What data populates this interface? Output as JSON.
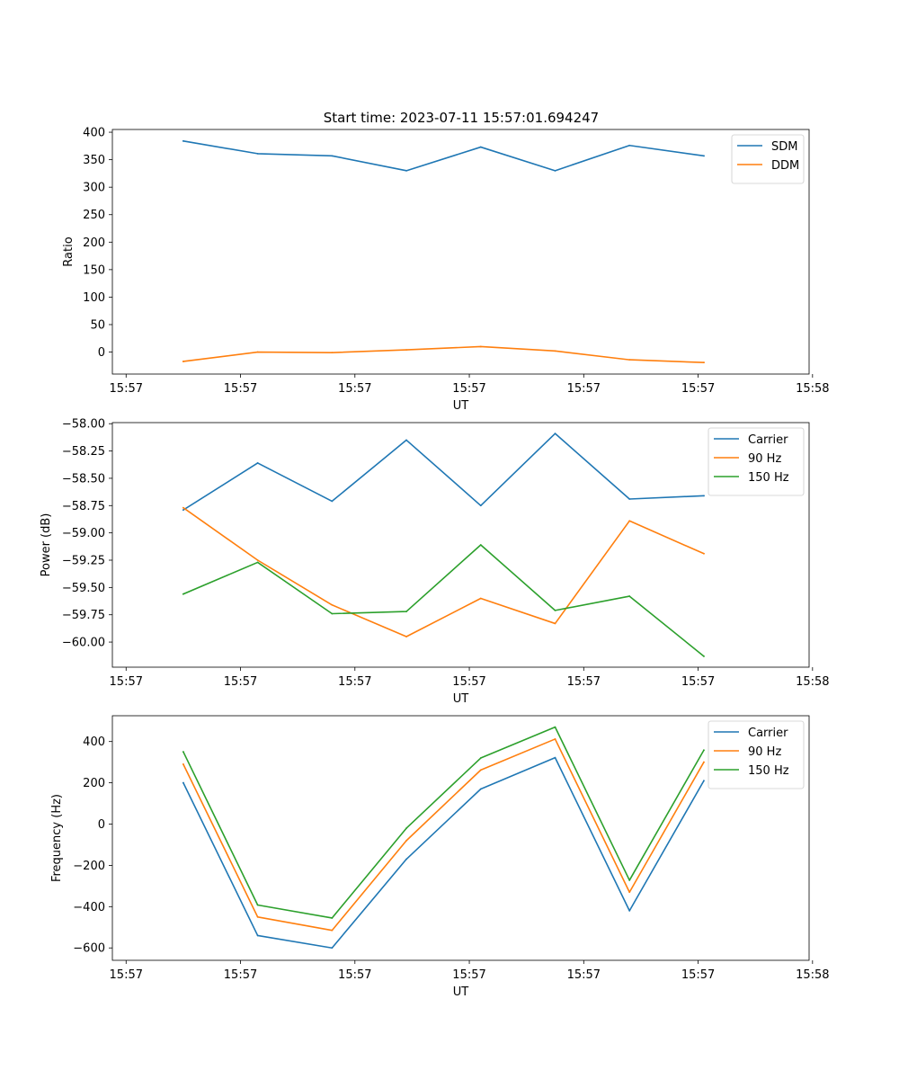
{
  "title": "Start time: 2023-07-11 15:57:01.694247",
  "chart_data": [
    {
      "type": "line",
      "title": "Start time: 2023-07-11 15:57:01.694247",
      "xlabel": "UT",
      "ylabel": "Ratio",
      "x_tick_labels": [
        "15:57",
        "15:57",
        "15:57",
        "15:57",
        "15:57",
        "15:57",
        "15:58"
      ],
      "yticks": [
        0,
        50,
        100,
        150,
        200,
        250,
        300,
        350,
        400
      ],
      "ytick_labels": [
        "0",
        "50",
        "100",
        "150",
        "200",
        "250",
        "300",
        "350",
        "400"
      ],
      "ylim": [
        -40,
        405
      ],
      "x": [
        0.5,
        1.15,
        1.8,
        2.45,
        3.1,
        3.75,
        4.4,
        5.05
      ],
      "xlim": [
        -0.12,
        5.97
      ],
      "legend_position": "upper right",
      "series": [
        {
          "name": "SDM",
          "color": "#1f77b4",
          "values": [
            384,
            361,
            357,
            330,
            373,
            330,
            376,
            357
          ]
        },
        {
          "name": "DDM",
          "color": "#ff7f0e",
          "values": [
            -17,
            0,
            -1,
            4,
            10,
            2,
            -14,
            -19
          ]
        }
      ]
    },
    {
      "type": "line",
      "title": "",
      "xlabel": "UT",
      "ylabel": "Power (dB)",
      "x_tick_labels": [
        "15:57",
        "15:57",
        "15:57",
        "15:57",
        "15:57",
        "15:57",
        "15:58"
      ],
      "yticks": [
        -60.0,
        -59.75,
        -59.5,
        -59.25,
        -59.0,
        -58.75,
        -58.5,
        -58.25,
        -58.0
      ],
      "ytick_labels": [
        "−60.00",
        "−59.75",
        "−59.50",
        "−59.25",
        "−59.00",
        "−58.75",
        "−58.50",
        "−58.25",
        "−58.00"
      ],
      "ylim": [
        -60.23,
        -57.99
      ],
      "x": [
        0.5,
        1.15,
        1.8,
        2.45,
        3.1,
        3.75,
        4.4,
        5.05
      ],
      "xlim": [
        -0.12,
        5.97
      ],
      "legend_position": "upper right",
      "series": [
        {
          "name": "Carrier",
          "color": "#1f77b4",
          "values": [
            -58.79,
            -58.36,
            -58.71,
            -58.15,
            -58.75,
            -58.09,
            -58.69,
            -58.66
          ]
        },
        {
          "name": "90 Hz",
          "color": "#ff7f0e",
          "values": [
            -58.77,
            -59.25,
            -59.66,
            -59.95,
            -59.6,
            -59.83,
            -58.89,
            -59.19
          ]
        },
        {
          "name": "150 Hz",
          "color": "#2ca02c",
          "values": [
            -59.56,
            -59.27,
            -59.74,
            -59.72,
            -59.11,
            -59.71,
            -59.58,
            -60.13
          ]
        }
      ]
    },
    {
      "type": "line",
      "title": "",
      "xlabel": "UT",
      "ylabel": "Frequency (Hz)",
      "x_tick_labels": [
        "15:57",
        "15:57",
        "15:57",
        "15:57",
        "15:57",
        "15:57",
        "15:58"
      ],
      "yticks": [
        -600,
        -400,
        -200,
        0,
        200,
        400
      ],
      "ytick_labels": [
        "−600",
        "−400",
        "−200",
        "0",
        "200",
        "400"
      ],
      "ylim": [
        -660,
        525
      ],
      "x": [
        0.5,
        1.15,
        1.8,
        2.45,
        3.1,
        3.75,
        4.4,
        5.05
      ],
      "xlim": [
        -0.12,
        5.97
      ],
      "legend_position": "upper right",
      "series": [
        {
          "name": "Carrier",
          "color": "#1f77b4",
          "values": [
            200,
            -540,
            -600,
            -170,
            170,
            322,
            -420,
            210
          ]
        },
        {
          "name": "90 Hz",
          "color": "#ff7f0e",
          "values": [
            290,
            -450,
            -515,
            -80,
            262,
            412,
            -330,
            300
          ]
        },
        {
          "name": "150 Hz",
          "color": "#2ca02c",
          "values": [
            350,
            -392,
            -455,
            -20,
            320,
            470,
            -272,
            358
          ]
        }
      ]
    }
  ]
}
